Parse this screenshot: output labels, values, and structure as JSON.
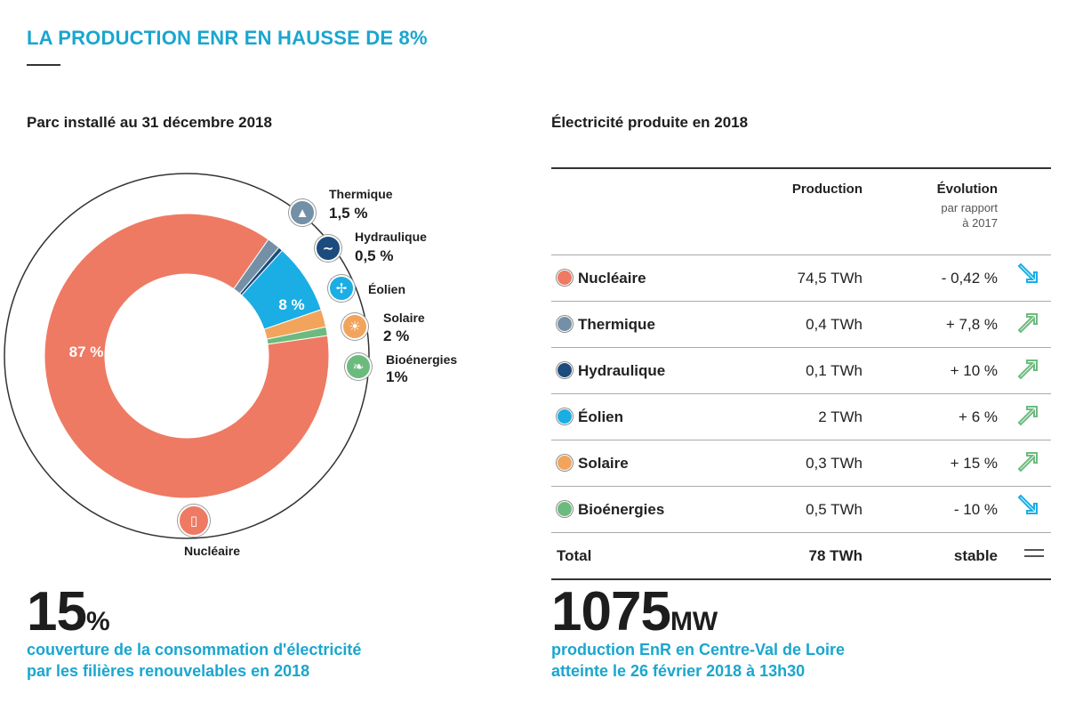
{
  "headline": "LA PRODUCTION ENR EN HAUSSE DE 8%",
  "left_title": "Parc installé au 31 décembre 2018",
  "right_title": "Électricité produite en 2018",
  "colors": {
    "accent": "#1aa6cf",
    "nucleaire": "#ee7a63",
    "thermique": "#7390a6",
    "hydraulique": "#1c4c7d",
    "eolien": "#1aaee4",
    "solaire": "#f2a45c",
    "bioenergies": "#6cbb7e",
    "arrow_down": "#1aaee4",
    "arrow_up": "#6cbb7e"
  },
  "chart_data": {
    "type": "pie",
    "variant": "donut",
    "title": "Parc installé au 31 décembre 2018",
    "slices": [
      {
        "name": "Nucléaire",
        "value": 87,
        "label": "87 %",
        "icon": "cooling-tower-icon"
      },
      {
        "name": "Thermique",
        "value": 1.5,
        "label": "1,5 %",
        "icon": "flame-icon"
      },
      {
        "name": "Hydraulique",
        "value": 0.5,
        "label": "0,5 %",
        "icon": "wave-icon"
      },
      {
        "name": "Éolien",
        "value": 8,
        "label": "8 %",
        "icon": "wind-turbine-icon"
      },
      {
        "name": "Solaire",
        "value": 2,
        "label": "2 %",
        "icon": "sun-icon"
      },
      {
        "name": "Bioénergies",
        "value": 1,
        "label": "1%",
        "icon": "leaf-icon"
      }
    ]
  },
  "labels": {
    "thermique": {
      "name": "Thermique",
      "value": "1,5 %"
    },
    "hydraulique": {
      "name": "Hydraulique",
      "value": "0,5 %"
    },
    "eolien": {
      "name": "Éolien"
    },
    "eolien_in": "8 %",
    "solaire": {
      "name": "Solaire",
      "value": "2 %"
    },
    "bioenergies": {
      "name": "Bioénergies",
      "value": "1%"
    },
    "nucleaire_in": "87 %",
    "nucleaire_bottom": "Nucléaire"
  },
  "table": {
    "col_production": "Production",
    "col_evolution": "Évolution",
    "col_evolution_sub1": "par rapport",
    "col_evolution_sub2": "à 2017",
    "rows": [
      {
        "name": "Nucléaire",
        "production": "74,5 TWh",
        "evolution": "- 0,42 %",
        "trend": "down",
        "color": "#ee7a63"
      },
      {
        "name": "Thermique",
        "production": "0,4 TWh",
        "evolution": "+ 7,8 %",
        "trend": "up",
        "color": "#7390a6"
      },
      {
        "name": "Hydraulique",
        "production": "0,1 TWh",
        "evolution": "+ 10 %",
        "trend": "up",
        "color": "#1c4c7d"
      },
      {
        "name": "Éolien",
        "production": "2 TWh",
        "evolution": "+ 6 %",
        "trend": "up",
        "color": "#1aaee4"
      },
      {
        "name": "Solaire",
        "production": "0,3 TWh",
        "evolution": "+ 15 %",
        "trend": "up",
        "color": "#f2a45c"
      },
      {
        "name": "Bioénergies",
        "production": "0,5 TWh",
        "evolution": "- 10 %",
        "trend": "down",
        "color": "#6cbb7e"
      }
    ],
    "total": {
      "name": "Total",
      "production": "78 TWh",
      "evolution": "stable",
      "trend": "stable"
    }
  },
  "stat_left": {
    "number": "15",
    "unit": "%",
    "line1": "couverture de la consommation d'électricité",
    "line2": "par les filières renouvelables en 2018"
  },
  "stat_right": {
    "number": "1075",
    "unit": "MW",
    "line1": "production EnR en Centre-Val de Loire",
    "line2": "atteinte le 26 février 2018 à 13h30"
  }
}
